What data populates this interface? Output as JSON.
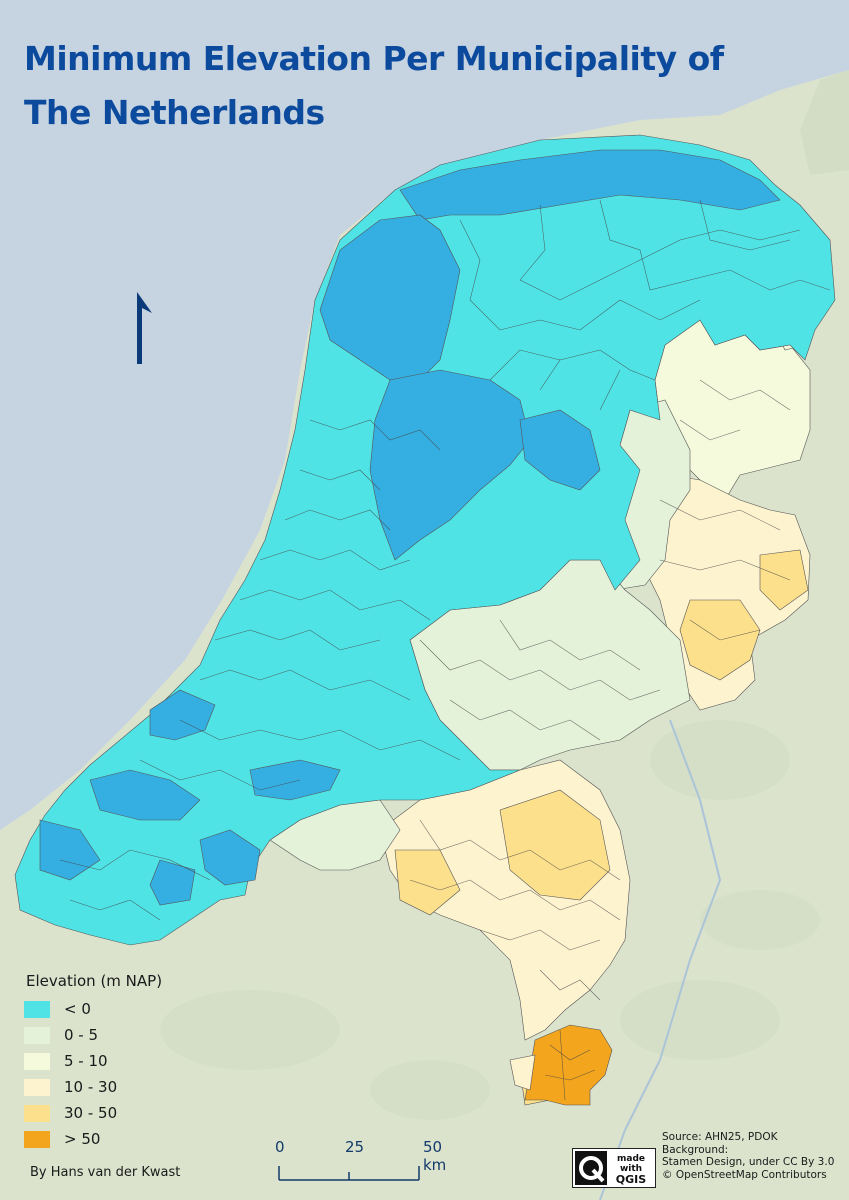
{
  "title_line1": "Minimum Elevation Per Municipality of",
  "title_line2": "The Netherlands",
  "legend": {
    "title": "Elevation (m NAP)",
    "items": [
      {
        "label": "< 0",
        "color": "#4fe3e6"
      },
      {
        "label": "0 - 5",
        "color": "#e3f2d9"
      },
      {
        "label": "5 - 10",
        "color": "#f6fadc"
      },
      {
        "label": "10 - 30",
        "color": "#fdf3cf"
      },
      {
        "label": "30 - 50",
        "color": "#fde08c"
      },
      {
        "label": "> 50",
        "color": "#f3a51e"
      }
    ]
  },
  "scalebar": {
    "labels": [
      "0",
      "25",
      "50 km"
    ]
  },
  "author": "By Hans van der Kwast",
  "logo_text": [
    "made",
    "with",
    "QGIS"
  ],
  "attribution": [
    "Source: AHN25, PDOK",
    "Background:",
    "Stamen Design, under CC By 3.0",
    "© OpenStreetMap Contributors"
  ],
  "colors": {
    "sea": "#c6d3e1",
    "land": "#dbe3cd",
    "below_zero": "#4fe3e6",
    "deep": "#35aee2",
    "title": "#0b4a9c"
  }
}
